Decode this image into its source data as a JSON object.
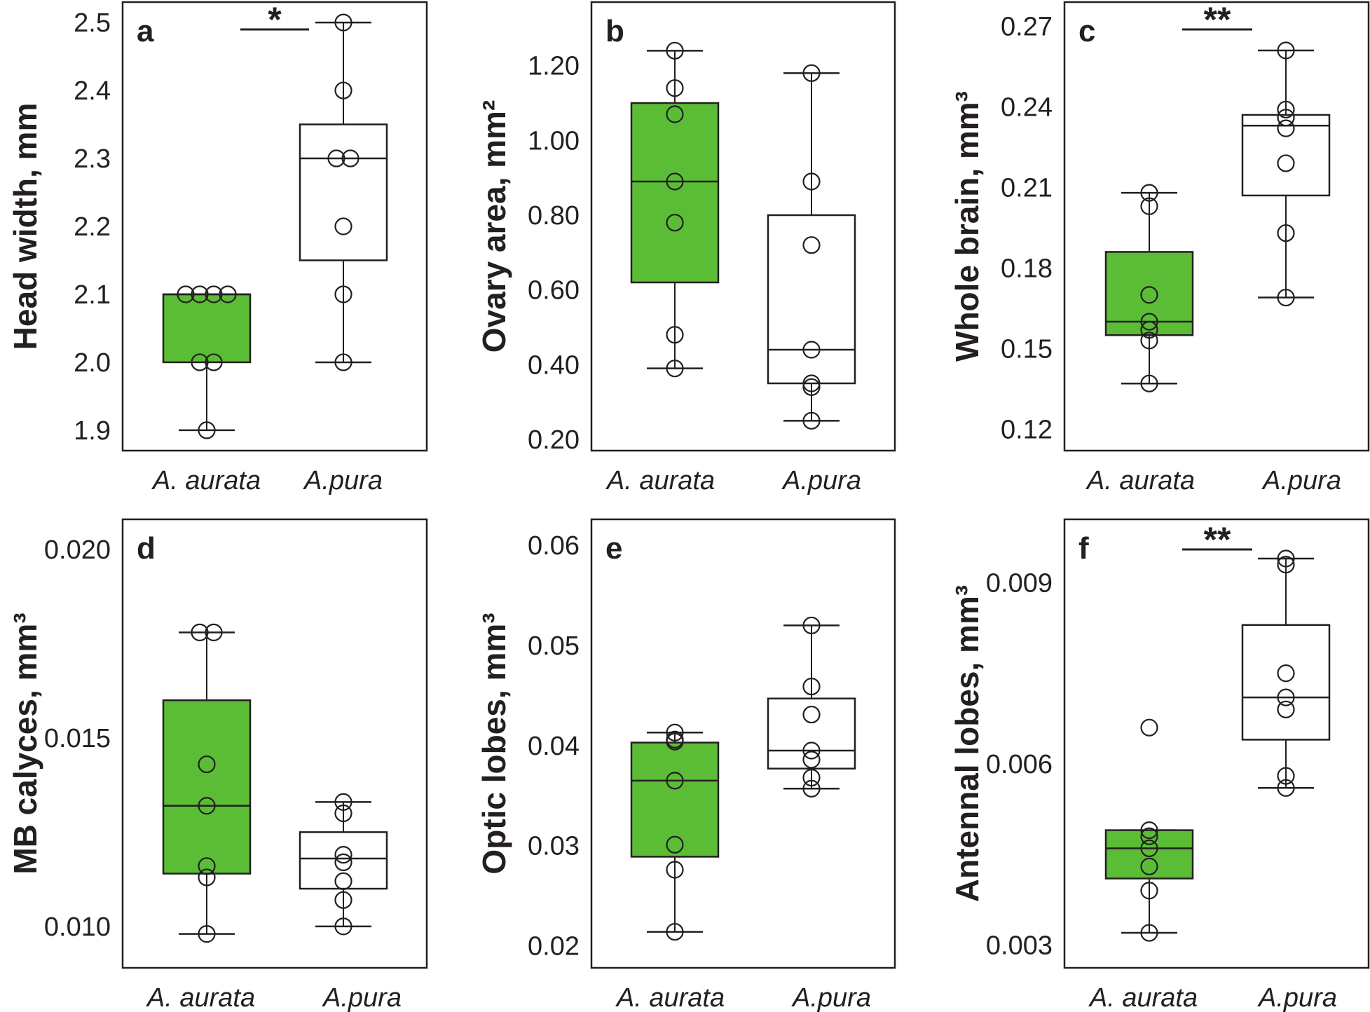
{
  "figure": {
    "fill_color": "#5bbd36",
    "stroke_color": "#231f20",
    "background": "#ffffff"
  },
  "chart_data": [
    {
      "type": "box",
      "panel": "a",
      "ylabel": "Head width, mm",
      "ylim": [
        1.87,
        2.53
      ],
      "yticks": [
        "1.9",
        "2.0",
        "2.1",
        "2.2",
        "2.3",
        "2.4",
        "2.5"
      ],
      "categories": [
        "A. aurata",
        "A.pura"
      ],
      "significance": "*",
      "groups": [
        {
          "category": "A. aurata",
          "filled": true,
          "q1": 2.0,
          "median": 2.1,
          "q3": 2.1,
          "whisker_low": 1.9,
          "whisker_high": 2.1,
          "points": [
            2.1,
            2.1,
            2.1,
            2.1,
            2.0,
            2.0,
            1.9
          ]
        },
        {
          "category": "A.pura",
          "filled": false,
          "q1": 2.15,
          "median": 2.3,
          "q3": 2.35,
          "whisker_low": 2.0,
          "whisker_high": 2.5,
          "points": [
            2.5,
            2.4,
            2.3,
            2.3,
            2.2,
            2.1,
            2.0
          ]
        }
      ]
    },
    {
      "type": "box",
      "panel": "b",
      "ylabel": "Ovary area, mm²",
      "ylim": [
        0.17,
        1.37
      ],
      "yticks": [
        "0.20",
        "0.40",
        "0.60",
        "0.80",
        "1.00",
        "1.20"
      ],
      "categories": [
        "A. aurata",
        "A.pura"
      ],
      "significance": "",
      "groups": [
        {
          "category": "A. aurata",
          "filled": true,
          "q1": 0.62,
          "median": 0.89,
          "q3": 1.1,
          "whisker_low": 0.39,
          "whisker_high": 1.24,
          "points": [
            1.24,
            1.14,
            1.07,
            0.89,
            0.78,
            0.48,
            0.39
          ]
        },
        {
          "category": "A.pura",
          "filled": false,
          "q1": 0.35,
          "median": 0.44,
          "q3": 0.8,
          "whisker_low": 0.25,
          "whisker_high": 1.18,
          "points": [
            1.18,
            0.89,
            0.72,
            0.44,
            0.35,
            0.34,
            0.25
          ]
        }
      ]
    },
    {
      "type": "box",
      "panel": "c",
      "ylabel": "Whole brain, mm³",
      "ylim": [
        0.112,
        0.279
      ],
      "yticks": [
        "0.12",
        "0.15",
        "0.18",
        "0.21",
        "0.24",
        "0.27"
      ],
      "categories": [
        "A. aurata",
        "A.pura"
      ],
      "significance": "**",
      "groups": [
        {
          "category": "A. aurata",
          "filled": true,
          "q1": 0.155,
          "median": 0.16,
          "q3": 0.186,
          "whisker_low": 0.137,
          "whisker_high": 0.208,
          "points": [
            0.208,
            0.203,
            0.17,
            0.16,
            0.157,
            0.153,
            0.137
          ]
        },
        {
          "category": "A.pura",
          "filled": false,
          "q1": 0.207,
          "median": 0.233,
          "q3": 0.237,
          "whisker_low": 0.169,
          "whisker_high": 0.261,
          "points": [
            0.261,
            0.239,
            0.236,
            0.232,
            0.219,
            0.193,
            0.169
          ]
        }
      ]
    },
    {
      "type": "box",
      "panel": "d",
      "ylabel": "MB calyces, mm³",
      "ylim": [
        0.0089,
        0.0208
      ],
      "yticks": [
        "0.010",
        "0.015",
        "0.020"
      ],
      "categories": [
        "A. aurata",
        "A.pura"
      ],
      "significance": "",
      "groups": [
        {
          "category": "A. aurata",
          "filled": true,
          "q1": 0.0114,
          "median": 0.0132,
          "q3": 0.016,
          "whisker_low": 0.0098,
          "whisker_high": 0.0178,
          "points": [
            0.0178,
            0.0178,
            0.0143,
            0.0132,
            0.0116,
            0.0113,
            0.0098
          ]
        },
        {
          "category": "A.pura",
          "filled": false,
          "q1": 0.011,
          "median": 0.0118,
          "q3": 0.0125,
          "whisker_low": 0.01,
          "whisker_high": 0.0133,
          "points": [
            0.0133,
            0.013,
            0.0119,
            0.0117,
            0.0112,
            0.0107,
            0.01
          ]
        }
      ]
    },
    {
      "type": "box",
      "panel": "e",
      "ylabel": "Optic lobes, mm³",
      "ylim": [
        0.0178,
        0.0626
      ],
      "yticks": [
        "0.02",
        "0.03",
        "0.04",
        "0.05",
        "0.06"
      ],
      "categories": [
        "A. aurata",
        "A.pura"
      ],
      "significance": "",
      "groups": [
        {
          "category": "A. aurata",
          "filled": true,
          "q1": 0.0289,
          "median": 0.0365,
          "q3": 0.0403,
          "whisker_low": 0.0214,
          "whisker_high": 0.0413,
          "points": [
            0.0413,
            0.0406,
            0.0404,
            0.0365,
            0.0301,
            0.0276,
            0.0214
          ]
        },
        {
          "category": "A.pura",
          "filled": false,
          "q1": 0.0377,
          "median": 0.0395,
          "q3": 0.0447,
          "whisker_low": 0.0357,
          "whisker_high": 0.052,
          "points": [
            0.052,
            0.0459,
            0.0431,
            0.0395,
            0.0386,
            0.0368,
            0.0357
          ]
        }
      ]
    },
    {
      "type": "box",
      "panel": "f",
      "ylabel": "Antennal lobes, mm³",
      "ylim": [
        0.00262,
        0.01005
      ],
      "yticks": [
        "0.003",
        "0.006",
        "0.009"
      ],
      "categories": [
        "A. aurata",
        "A.pura"
      ],
      "significance": "**",
      "groups": [
        {
          "category": "A. aurata",
          "filled": true,
          "q1": 0.0041,
          "median": 0.0046,
          "q3": 0.0049,
          "whisker_low": 0.0032,
          "whisker_high": 0.0049,
          "points": [
            0.0066,
            0.0049,
            0.0048,
            0.0046,
            0.0043,
            0.0039,
            0.0032
          ]
        },
        {
          "category": "A.pura",
          "filled": false,
          "q1": 0.0064,
          "median": 0.0071,
          "q3": 0.0083,
          "whisker_low": 0.0056,
          "whisker_high": 0.0094,
          "points": [
            0.0094,
            0.0093,
            0.0075,
            0.0071,
            0.0069,
            0.0058,
            0.0056
          ]
        }
      ]
    }
  ]
}
